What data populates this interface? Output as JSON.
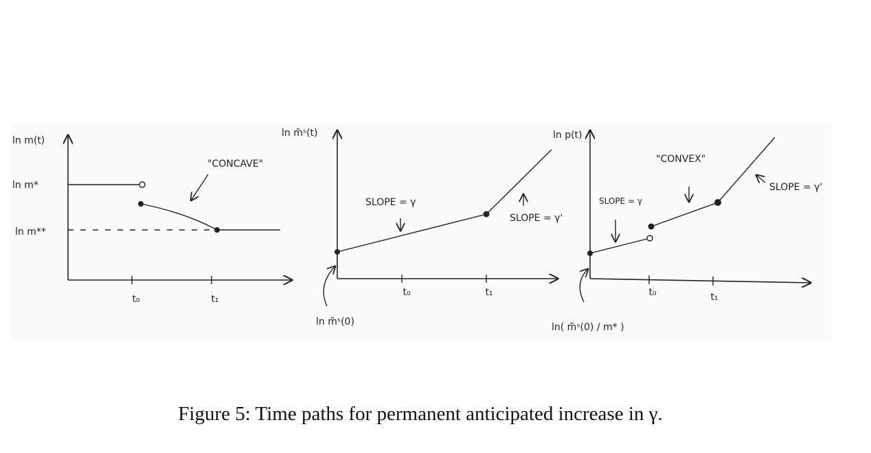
{
  "panels": [
    {
      "y_label": "ln m(t)",
      "levels": [
        "ln m*",
        "ln m**"
      ],
      "ticks": [
        "t₀",
        "t₁"
      ],
      "notes": [
        "\"CONCAVE\""
      ]
    },
    {
      "y_label": "ln m̃ˢ(t)",
      "ticks": [
        "t₀",
        "t₁"
      ],
      "notes": [
        "SLOPE = γ",
        "SLOPE = γ'"
      ],
      "intercept_label": "ln m̃ˢ(0)"
    },
    {
      "y_label": "ln p(t)",
      "ticks": [
        "t₀",
        "t₁"
      ],
      "notes": [
        "\"CONVEX\"",
        "SLOPE = γ",
        "SLOPE = γ'"
      ],
      "intercept_label": "ln( m̃ˢ(0) / m* )"
    }
  ],
  "caption": "Figure 5: Time paths for permanent anticipated increase in γ."
}
